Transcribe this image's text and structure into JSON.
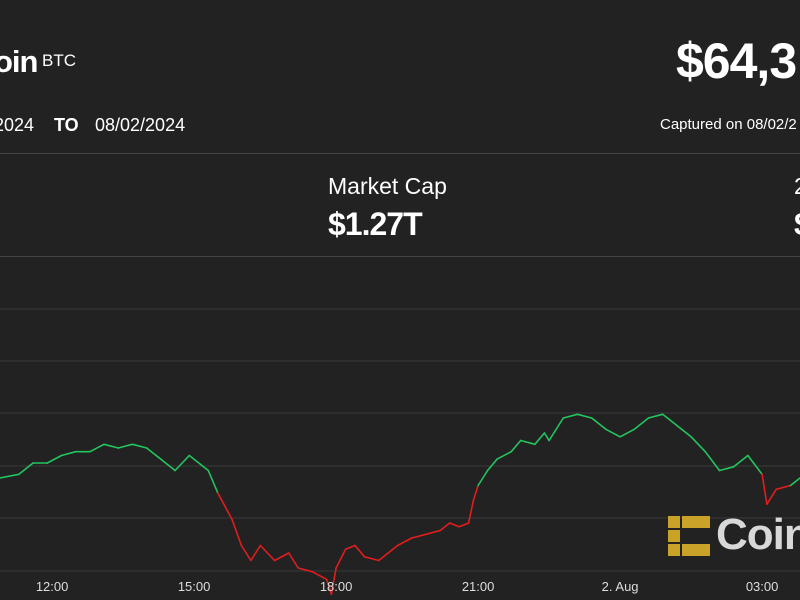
{
  "header": {
    "coin_name": "oin",
    "ticker": "BTC",
    "price": "$64,3",
    "date_from": "2024",
    "date_to_label": "TO",
    "date_to": "08/02/2024",
    "captured": "Captured on 08/02/2"
  },
  "stats": {
    "market_cap_label": "Market Cap",
    "market_cap_value": "$1.27T",
    "second_label": "2",
    "second_value": "$"
  },
  "watermark": {
    "text": "Coin",
    "icon": "coindesk-logo-icon"
  },
  "colors": {
    "background": "#222222",
    "up": "#22c55e",
    "down": "#e11d1d",
    "grid": "#3a3a3a"
  },
  "chart_data": {
    "type": "line",
    "title": "",
    "xlabel": "",
    "ylabel": "",
    "grid": true,
    "x_tick_labels": [
      "12:00",
      "15:00",
      "18:00",
      "21:00",
      "2. Aug",
      "03:00"
    ],
    "x_tick_positions_hours": [
      12,
      15,
      18,
      21,
      24,
      27
    ],
    "x_range_hours": [
      10.9,
      27.8
    ],
    "y_range_relative": [
      0,
      1
    ],
    "series": [
      {
        "points": [
          [
            10.9,
            0.6
          ],
          [
            11.3,
            0.61
          ],
          [
            11.6,
            0.64
          ],
          [
            11.9,
            0.64
          ],
          [
            12.2,
            0.66
          ],
          [
            12.5,
            0.67
          ],
          [
            12.8,
            0.67
          ],
          [
            13.1,
            0.69
          ],
          [
            13.4,
            0.68
          ],
          [
            13.7,
            0.69
          ],
          [
            14.0,
            0.68
          ],
          [
            14.3,
            0.65
          ],
          [
            14.6,
            0.62
          ],
          [
            14.9,
            0.66
          ],
          [
            15.3,
            0.62
          ],
          [
            15.5,
            0.56
          ],
          [
            15.8,
            0.49
          ],
          [
            16.0,
            0.42
          ],
          [
            16.2,
            0.38
          ],
          [
            16.4,
            0.42
          ],
          [
            16.7,
            0.38
          ],
          [
            17.0,
            0.4
          ],
          [
            17.2,
            0.36
          ],
          [
            17.5,
            0.35
          ],
          [
            17.8,
            0.33
          ],
          [
            17.9,
            0.29
          ],
          [
            18.0,
            0.36
          ],
          [
            18.2,
            0.41
          ],
          [
            18.4,
            0.42
          ],
          [
            18.6,
            0.39
          ],
          [
            18.9,
            0.38
          ],
          [
            19.1,
            0.4
          ],
          [
            19.3,
            0.42
          ],
          [
            19.6,
            0.44
          ],
          [
            19.9,
            0.45
          ],
          [
            20.2,
            0.46
          ],
          [
            20.4,
            0.48
          ],
          [
            20.6,
            0.47
          ],
          [
            20.8,
            0.48
          ],
          [
            20.9,
            0.54
          ],
          [
            21.0,
            0.58
          ],
          [
            21.2,
            0.62
          ],
          [
            21.4,
            0.65
          ],
          [
            21.7,
            0.67
          ],
          [
            21.9,
            0.7
          ],
          [
            22.2,
            0.69
          ],
          [
            22.4,
            0.72
          ],
          [
            22.5,
            0.7
          ],
          [
            22.8,
            0.76
          ],
          [
            23.1,
            0.77
          ],
          [
            23.4,
            0.76
          ],
          [
            23.7,
            0.73
          ],
          [
            24.0,
            0.71
          ],
          [
            24.3,
            0.73
          ],
          [
            24.6,
            0.76
          ],
          [
            24.9,
            0.77
          ],
          [
            25.2,
            0.74
          ],
          [
            25.5,
            0.71
          ],
          [
            25.8,
            0.67
          ],
          [
            26.1,
            0.62
          ],
          [
            26.4,
            0.63
          ],
          [
            26.7,
            0.66
          ],
          [
            27.0,
            0.61
          ],
          [
            27.1,
            0.53
          ],
          [
            27.3,
            0.57
          ],
          [
            27.6,
            0.58
          ],
          [
            27.8,
            0.6
          ]
        ]
      }
    ]
  }
}
